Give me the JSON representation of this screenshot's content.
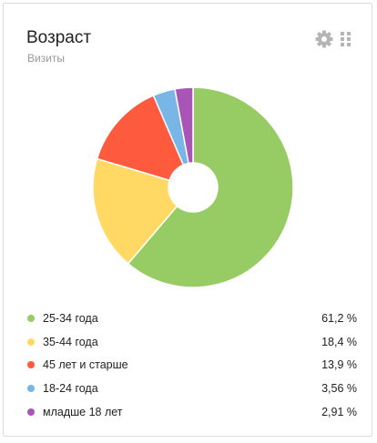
{
  "widget": {
    "title": "Возраст",
    "subtitle": "Визиты",
    "settings_icon": "gear-icon",
    "drag_icon": "grid-handle-icon"
  },
  "chart_data": {
    "type": "pie",
    "donut": true,
    "title": "Возраст",
    "subtitle": "Визиты",
    "legend_position": "bottom",
    "categories": [
      "25-34 года",
      "35-44 года",
      "45 лет и старше",
      "18-24 года",
      "младше 18 лет"
    ],
    "values": [
      61.2,
      18.4,
      13.9,
      3.56,
      2.91
    ],
    "value_labels": [
      "61,2 %",
      "18,4 %",
      "13,9 %",
      "3,56 %",
      "2,91 %"
    ],
    "colors": [
      "#97cc64",
      "#ffd963",
      "#fd5a3e",
      "#77b6e7",
      "#a955b8"
    ]
  }
}
